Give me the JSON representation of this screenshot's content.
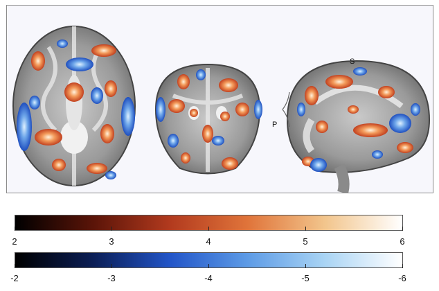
{
  "viewer": {
    "views": [
      "axial",
      "coronal",
      "sagittal"
    ],
    "orientation_labels": {
      "superior": "S",
      "posterior": "P"
    }
  },
  "colorbars": {
    "positive": {
      "ticks": [
        "2",
        "3",
        "4",
        "5",
        "6"
      ],
      "colors": [
        "#000000",
        "#5a1408",
        "#b23a1e",
        "#e0743a",
        "#f2c58c",
        "#ffffff"
      ]
    },
    "negative": {
      "ticks": [
        "-2",
        "-3",
        "-4",
        "-5",
        "-6"
      ],
      "colors": [
        "#000000",
        "#0b1e55",
        "#2255c8",
        "#5d9be6",
        "#a9d4f4",
        "#ffffff"
      ]
    }
  }
}
